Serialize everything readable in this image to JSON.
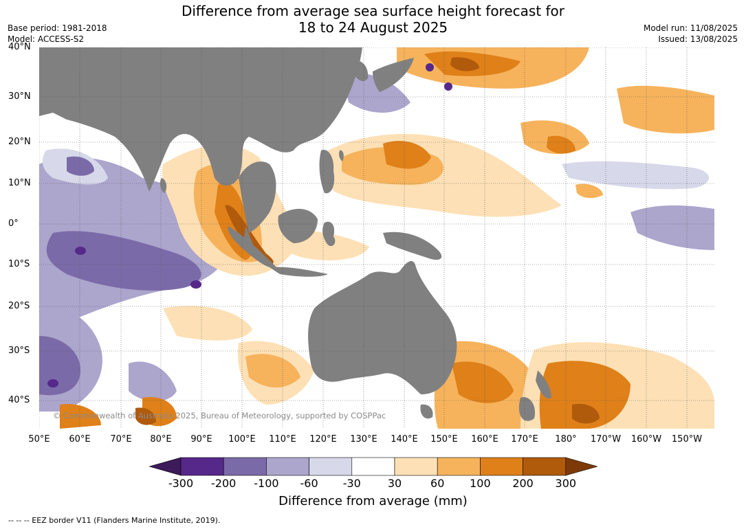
{
  "title_line1": "Difference from average sea surface height forecast for",
  "title_line2": "18 to 24 August 2025",
  "base_period": "Base period: 1981-2018",
  "model": "Model: ACCESS-S2",
  "model_run": "Model run: 11/08/2025",
  "issued": "Issued: 13/08/2025",
  "copyright": "© Commonwealth of Australia 2025, Bureau of Meteorology, supported by COSPPac",
  "lat_labels": [
    "40°N",
    "30°N",
    "20°N",
    "10°N",
    "0°",
    "10°S",
    "20°S",
    "30°S",
    "40°S"
  ],
  "lon_labels": [
    "50°E",
    "60°E",
    "70°E",
    "80°E",
    "90°E",
    "100°E",
    "110°E",
    "120°E",
    "130°E",
    "140°E",
    "150°E",
    "160°E",
    "170°E",
    "180°",
    "170°W",
    "160°W",
    "150°W"
  ],
  "colorbar": {
    "title": "Difference from average (mm)",
    "tick_labels": [
      "-300",
      "-200",
      "-100",
      "-60",
      "-30",
      "30",
      "60",
      "100",
      "200",
      "300"
    ],
    "colors": [
      "#3d1a5a",
      "#56288a",
      "#7b6aa8",
      "#aca5cc",
      "#d7d8e9",
      "#ffffff",
      "#fde0b5",
      "#f6b35c",
      "#df8019",
      "#b05a0c",
      "#7d3a08"
    ]
  },
  "colors": {
    "land": "#808080",
    "ocean_neutral": "#ffffff",
    "grid": "#555555"
  },
  "footer": "--  --  -- EEZ border V11 (Flanders Marine Institute, 2019)."
}
